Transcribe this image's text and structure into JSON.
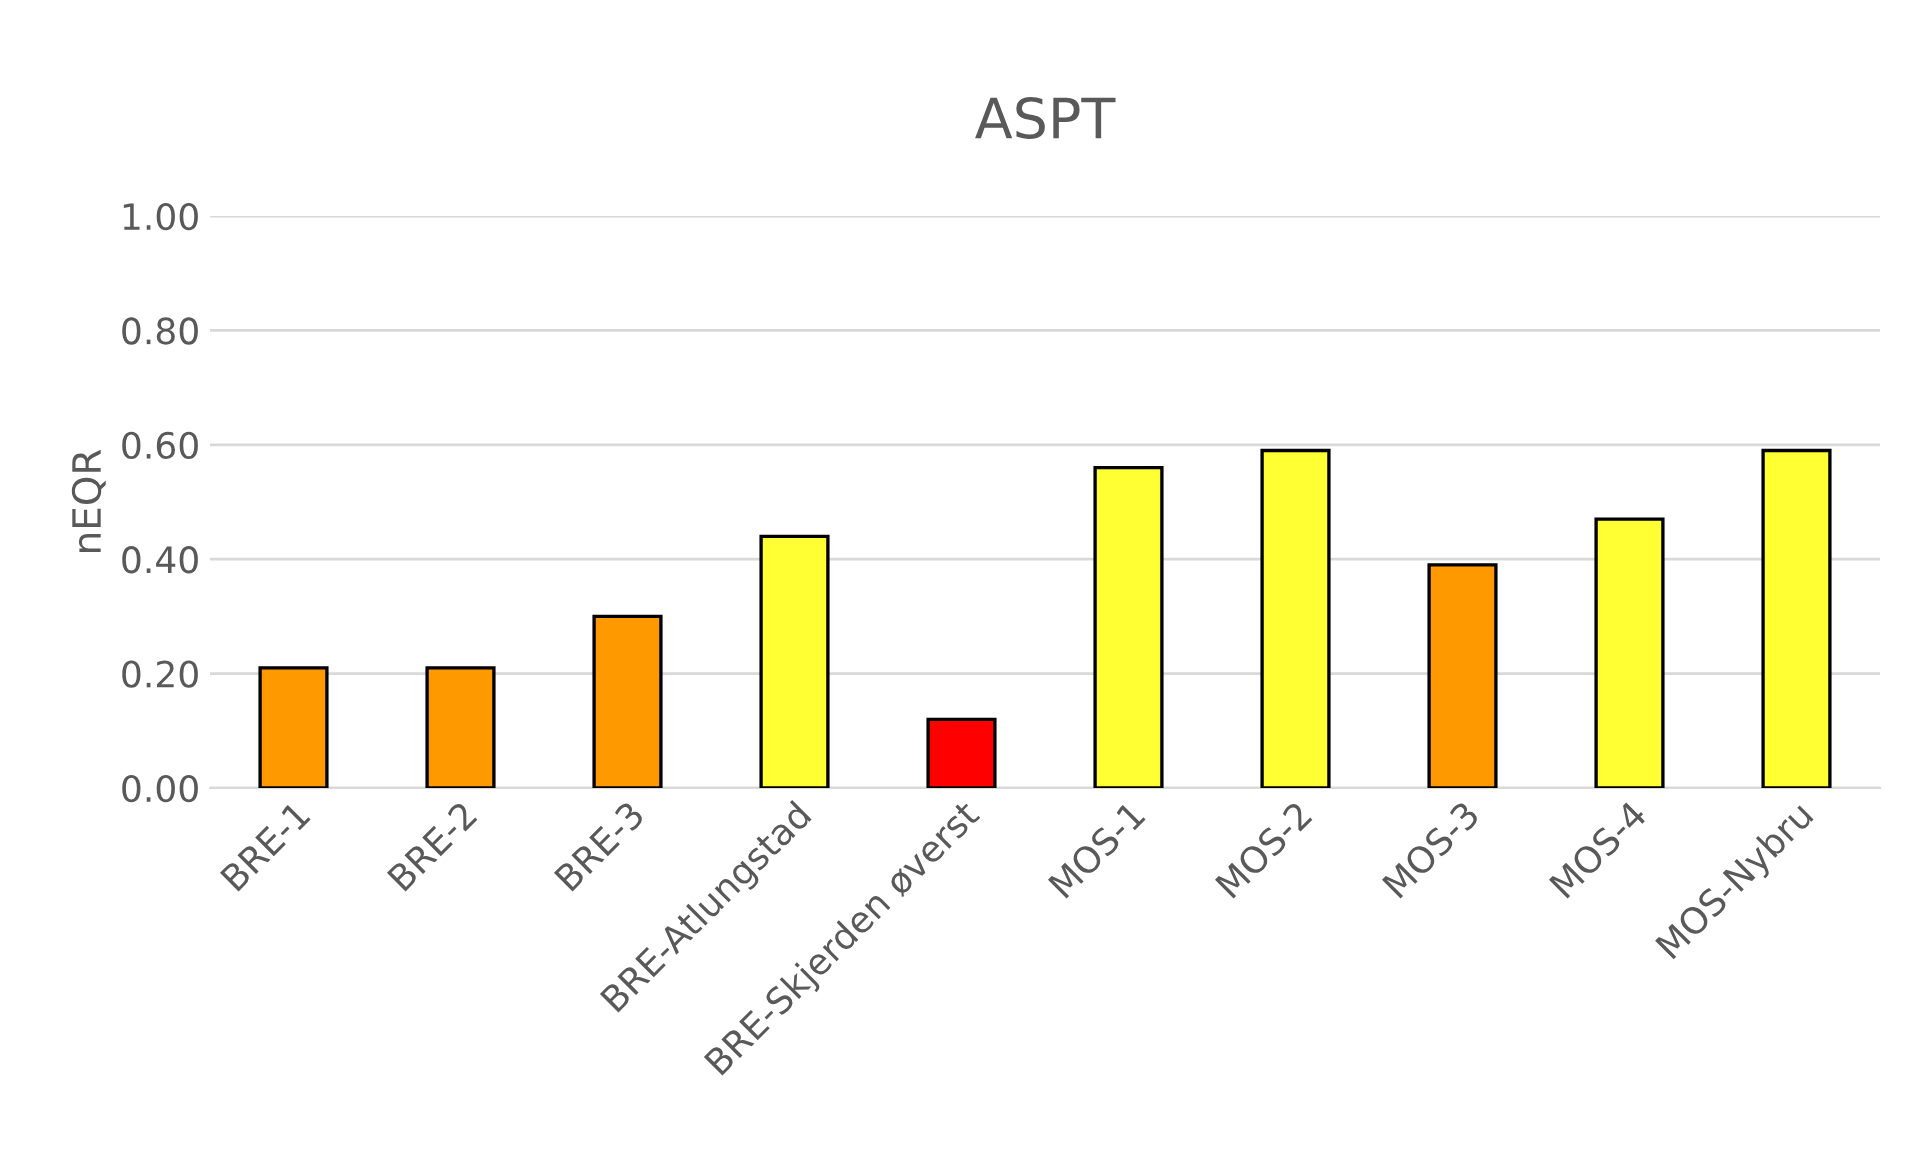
{
  "chart_data": {
    "type": "bar",
    "title": "ASPT",
    "ylabel": "nEQR",
    "categories": [
      "BRE-1",
      "BRE-2",
      "BRE-3",
      "BRE-Atlungstad",
      "BRE-Skjerden øverst",
      "MOS-1",
      "MOS-2",
      "MOS-3",
      "MOS-4",
      "MOS-Nybru"
    ],
    "values": [
      0.21,
      0.21,
      0.3,
      0.44,
      0.12,
      0.56,
      0.59,
      0.39,
      0.47,
      0.59
    ],
    "colors": [
      "#ff9900",
      "#ff9900",
      "#ff9900",
      "#ffff33",
      "#ff0000",
      "#ffff33",
      "#ffff33",
      "#ff9900",
      "#ffff33",
      "#ffff33"
    ],
    "ylim": [
      0,
      1.0
    ],
    "yticks": [
      {
        "value": 0,
        "label": "0.00"
      },
      {
        "value": 0.2,
        "label": "0.20"
      },
      {
        "value": 0.4,
        "label": "0.40"
      },
      {
        "value": 0.6,
        "label": "0.60"
      },
      {
        "value": 0.8,
        "label": "0.80"
      },
      {
        "value": 1.0,
        "label": "1.00"
      }
    ],
    "grid": "y",
    "legend": false
  }
}
